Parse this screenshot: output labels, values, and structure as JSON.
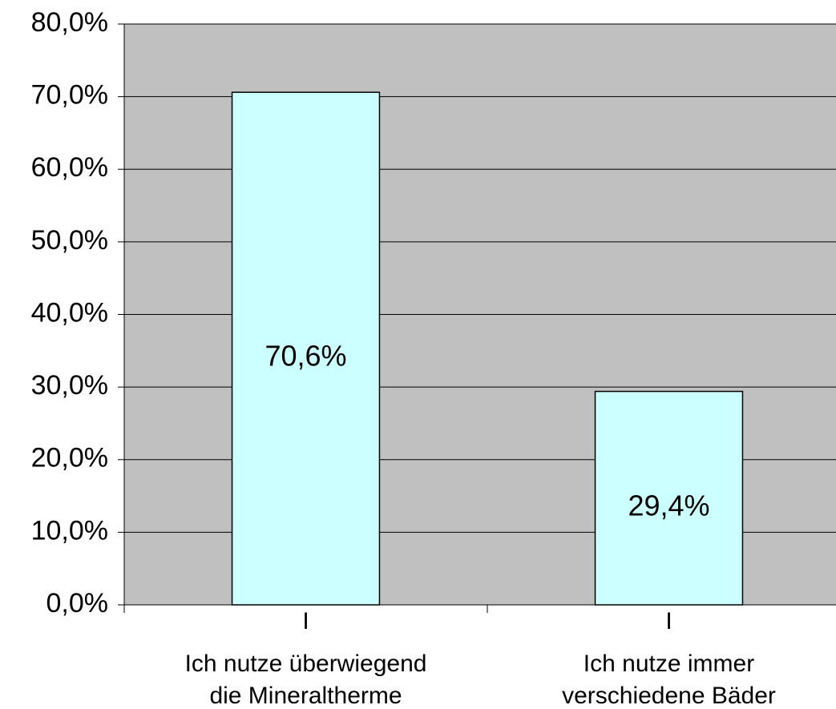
{
  "chart_data": {
    "type": "bar",
    "categories": [
      [
        "I",
        "Ich nutze überwiegend",
        "die Mineraltherme"
      ],
      [
        "I",
        "Ich nutze immer",
        "verschiedene Bäder"
      ]
    ],
    "values": [
      70.6,
      29.4
    ],
    "value_labels": [
      "70,6%",
      "29,4%"
    ],
    "color": "#ccffff",
    "ylim": [
      0,
      80
    ],
    "yticks": [
      {
        "value": 0,
        "label": "0,0%"
      },
      {
        "value": 10,
        "label": "10,0%"
      },
      {
        "value": 20,
        "label": "20,0%"
      },
      {
        "value": 30,
        "label": "30,0%"
      },
      {
        "value": 40,
        "label": "40,0%"
      },
      {
        "value": 50,
        "label": "50,0%"
      },
      {
        "value": 60,
        "label": "60,0%"
      },
      {
        "value": 70,
        "label": "70,0%"
      },
      {
        "value": 80,
        "label": "80,0%"
      }
    ],
    "grid": true
  }
}
